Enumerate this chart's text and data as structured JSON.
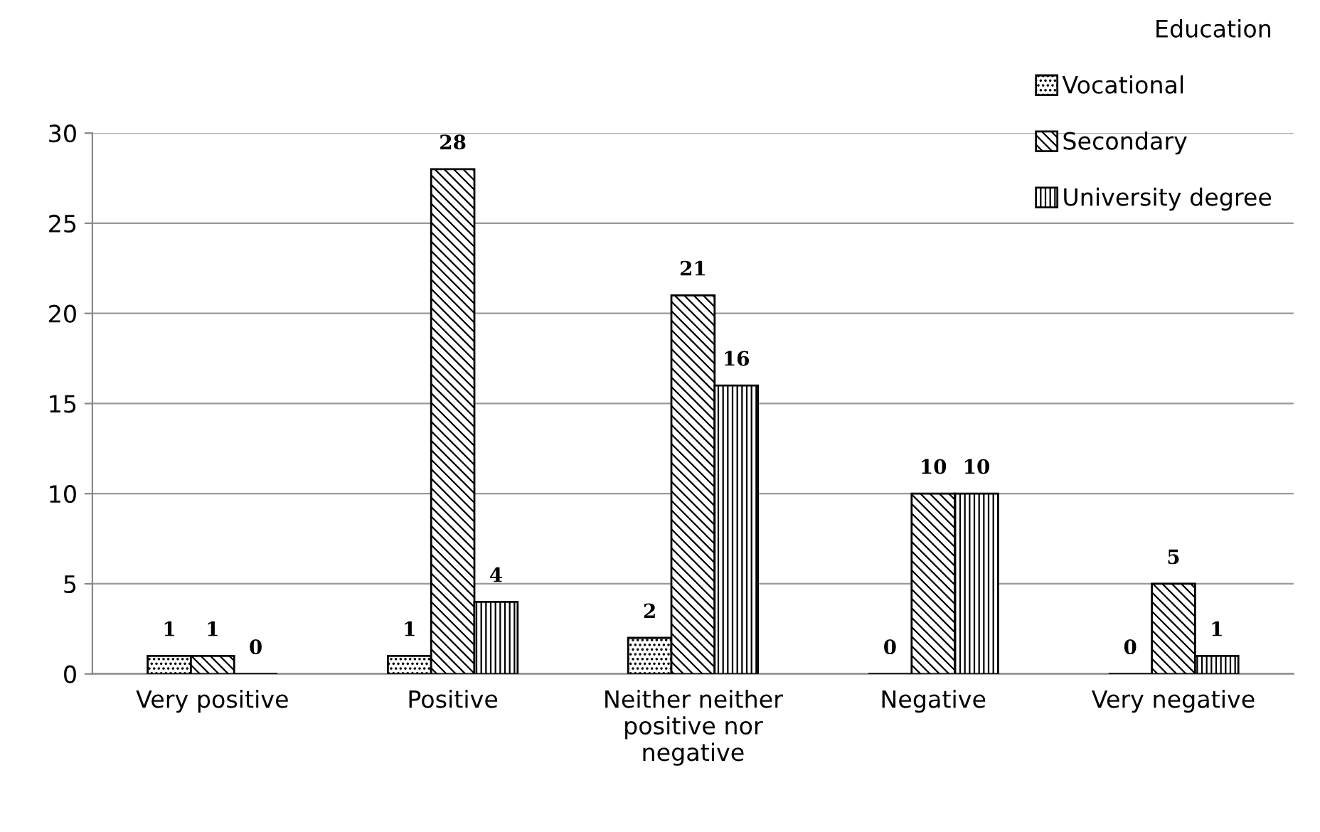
{
  "chart_data": {
    "type": "bar",
    "categories": [
      "Very positive",
      "Positive",
      "Neither neither positive nor negative",
      "Negative",
      "Very negative"
    ],
    "series": [
      {
        "name": "Vocational",
        "color": "#000000",
        "values": [
          1,
          1,
          2,
          0,
          0
        ]
      },
      {
        "name": "Secondary",
        "color": "#000000",
        "values": [
          1,
          28,
          21,
          10,
          5
        ]
      },
      {
        "name": "University degree",
        "color": "#000000",
        "values": [
          0,
          4,
          16,
          10,
          1
        ]
      }
    ],
    "legend_title": "Education",
    "legend": "top right",
    "ylim": [
      0,
      30
    ],
    "yticks": [
      0,
      5,
      10,
      15,
      20,
      25,
      30
    ],
    "grid": "y",
    "data_labels": true
  }
}
